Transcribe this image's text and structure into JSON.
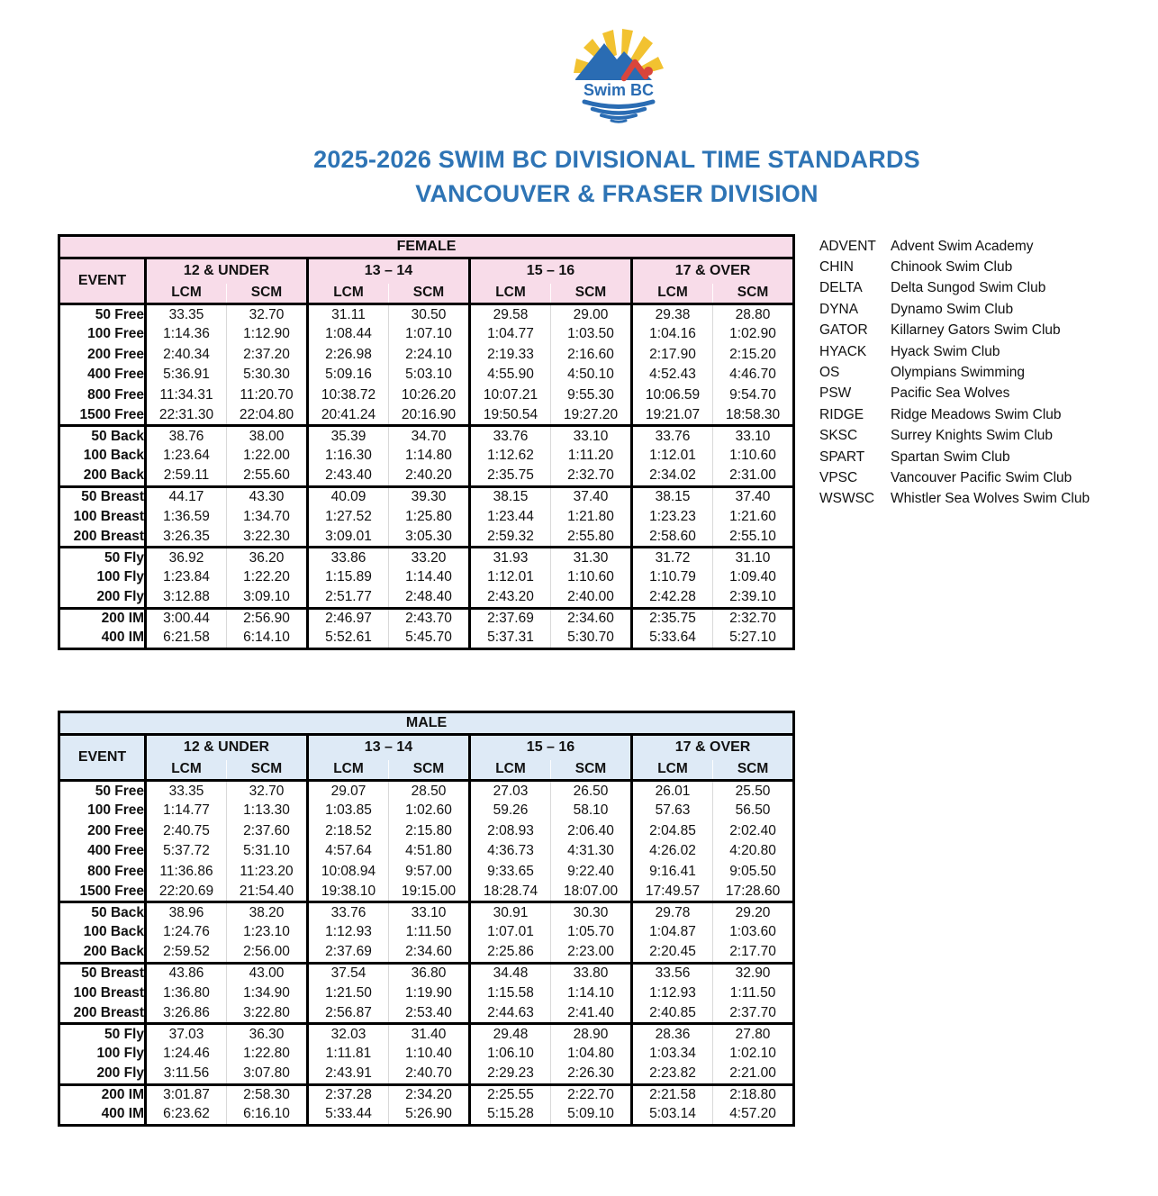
{
  "logo": {
    "text": "Swim BC"
  },
  "title": {
    "line1": "2025-2026 SWIM BC DIVISIONAL TIME STANDARDS",
    "line2": "VANCOUVER & FRASER DIVISION"
  },
  "colors": {
    "title_blue": "#2E74B5",
    "female_header": "#F8DCE9",
    "male_header": "#DEEAF6",
    "logo_yellow": "#F2C230",
    "logo_blue": "#2A6CB3",
    "logo_red": "#D9453C"
  },
  "tables": [
    {
      "gender": "FEMALE",
      "header_color": "#F8DCE9",
      "event_label": "EVENT",
      "age_groups": [
        "12 & UNDER",
        "13 – 14",
        "15 – 16",
        "17 & OVER"
      ],
      "course_labels": [
        "LCM",
        "SCM"
      ],
      "sections": [
        {
          "name": "freestyle",
          "rows": [
            {
              "event": "50 Free",
              "times": [
                "33.35",
                "32.70",
                "31.11",
                "30.50",
                "29.58",
                "29.00",
                "29.38",
                "28.80"
              ]
            },
            {
              "event": "100 Free",
              "times": [
                "1:14.36",
                "1:12.90",
                "1:08.44",
                "1:07.10",
                "1:04.77",
                "1:03.50",
                "1:04.16",
                "1:02.90"
              ]
            },
            {
              "event": "200 Free",
              "times": [
                "2:40.34",
                "2:37.20",
                "2:26.98",
                "2:24.10",
                "2:19.33",
                "2:16.60",
                "2:17.90",
                "2:15.20"
              ]
            },
            {
              "event": "400 Free",
              "times": [
                "5:36.91",
                "5:30.30",
                "5:09.16",
                "5:03.10",
                "4:55.90",
                "4:50.10",
                "4:52.43",
                "4:46.70"
              ]
            },
            {
              "event": "800 Free",
              "times": [
                "11:34.31",
                "11:20.70",
                "10:38.72",
                "10:26.20",
                "10:07.21",
                "9:55.30",
                "10:06.59",
                "9:54.70"
              ]
            },
            {
              "event": "1500 Free",
              "times": [
                "22:31.30",
                "22:04.80",
                "20:41.24",
                "20:16.90",
                "19:50.54",
                "19:27.20",
                "19:21.07",
                "18:58.30"
              ]
            }
          ]
        },
        {
          "name": "backstroke",
          "rows": [
            {
              "event": "50 Back",
              "times": [
                "38.76",
                "38.00",
                "35.39",
                "34.70",
                "33.76",
                "33.10",
                "33.76",
                "33.10"
              ]
            },
            {
              "event": "100 Back",
              "times": [
                "1:23.64",
                "1:22.00",
                "1:16.30",
                "1:14.80",
                "1:12.62",
                "1:11.20",
                "1:12.01",
                "1:10.60"
              ]
            },
            {
              "event": "200 Back",
              "times": [
                "2:59.11",
                "2:55.60",
                "2:43.40",
                "2:40.20",
                "2:35.75",
                "2:32.70",
                "2:34.02",
                "2:31.00"
              ]
            }
          ]
        },
        {
          "name": "breaststroke",
          "rows": [
            {
              "event": "50 Breast",
              "times": [
                "44.17",
                "43.30",
                "40.09",
                "39.30",
                "38.15",
                "37.40",
                "38.15",
                "37.40"
              ]
            },
            {
              "event": "100 Breast",
              "times": [
                "1:36.59",
                "1:34.70",
                "1:27.52",
                "1:25.80",
                "1:23.44",
                "1:21.80",
                "1:23.23",
                "1:21.60"
              ]
            },
            {
              "event": "200 Breast",
              "times": [
                "3:26.35",
                "3:22.30",
                "3:09.01",
                "3:05.30",
                "2:59.32",
                "2:55.80",
                "2:58.60",
                "2:55.10"
              ]
            }
          ]
        },
        {
          "name": "butterfly",
          "rows": [
            {
              "event": "50 Fly",
              "times": [
                "36.92",
                "36.20",
                "33.86",
                "33.20",
                "31.93",
                "31.30",
                "31.72",
                "31.10"
              ]
            },
            {
              "event": "100 Fly",
              "times": [
                "1:23.84",
                "1:22.20",
                "1:15.89",
                "1:14.40",
                "1:12.01",
                "1:10.60",
                "1:10.79",
                "1:09.40"
              ]
            },
            {
              "event": "200 Fly",
              "times": [
                "3:12.88",
                "3:09.10",
                "2:51.77",
                "2:48.40",
                "2:43.20",
                "2:40.00",
                "2:42.28",
                "2:39.10"
              ]
            }
          ]
        },
        {
          "name": "individual-medley",
          "rows": [
            {
              "event": "200 IM",
              "times": [
                "3:00.44",
                "2:56.90",
                "2:46.97",
                "2:43.70",
                "2:37.69",
                "2:34.60",
                "2:35.75",
                "2:32.70"
              ]
            },
            {
              "event": "400 IM",
              "times": [
                "6:21.58",
                "6:14.10",
                "5:52.61",
                "5:45.70",
                "5:37.31",
                "5:30.70",
                "5:33.64",
                "5:27.10"
              ]
            }
          ]
        }
      ]
    },
    {
      "gender": "MALE",
      "header_color": "#DEEAF6",
      "event_label": "EVENT",
      "age_groups": [
        "12 & UNDER",
        "13 – 14",
        "15 – 16",
        "17 & OVER"
      ],
      "course_labels": [
        "LCM",
        "SCM"
      ],
      "sections": [
        {
          "name": "freestyle",
          "rows": [
            {
              "event": "50 Free",
              "times": [
                "33.35",
                "32.70",
                "29.07",
                "28.50",
                "27.03",
                "26.50",
                "26.01",
                "25.50"
              ]
            },
            {
              "event": "100 Free",
              "times": [
                "1:14.77",
                "1:13.30",
                "1:03.85",
                "1:02.60",
                "59.26",
                "58.10",
                "57.63",
                "56.50"
              ]
            },
            {
              "event": "200 Free",
              "times": [
                "2:40.75",
                "2:37.60",
                "2:18.52",
                "2:15.80",
                "2:08.93",
                "2:06.40",
                "2:04.85",
                "2:02.40"
              ]
            },
            {
              "event": "400 Free",
              "times": [
                "5:37.72",
                "5:31.10",
                "4:57.64",
                "4:51.80",
                "4:36.73",
                "4:31.30",
                "4:26.02",
                "4:20.80"
              ]
            },
            {
              "event": "800 Free",
              "times": [
                "11:36.86",
                "11:23.20",
                "10:08.94",
                "9:57.00",
                "9:33.65",
                "9:22.40",
                "9:16.41",
                "9:05.50"
              ]
            },
            {
              "event": "1500 Free",
              "times": [
                "22:20.69",
                "21:54.40",
                "19:38.10",
                "19:15.00",
                "18:28.74",
                "18:07.00",
                "17:49.57",
                "17:28.60"
              ]
            }
          ]
        },
        {
          "name": "backstroke",
          "rows": [
            {
              "event": "50 Back",
              "times": [
                "38.96",
                "38.20",
                "33.76",
                "33.10",
                "30.91",
                "30.30",
                "29.78",
                "29.20"
              ]
            },
            {
              "event": "100 Back",
              "times": [
                "1:24.76",
                "1:23.10",
                "1:12.93",
                "1:11.50",
                "1:07.01",
                "1:05.70",
                "1:04.87",
                "1:03.60"
              ]
            },
            {
              "event": "200 Back",
              "times": [
                "2:59.52",
                "2:56.00",
                "2:37.69",
                "2:34.60",
                "2:25.86",
                "2:23.00",
                "2:20.45",
                "2:17.70"
              ]
            }
          ]
        },
        {
          "name": "breaststroke",
          "rows": [
            {
              "event": "50 Breast",
              "times": [
                "43.86",
                "43.00",
                "37.54",
                "36.80",
                "34.48",
                "33.80",
                "33.56",
                "32.90"
              ]
            },
            {
              "event": "100 Breast",
              "times": [
                "1:36.80",
                "1:34.90",
                "1:21.50",
                "1:19.90",
                "1:15.58",
                "1:14.10",
                "1:12.93",
                "1:11.50"
              ]
            },
            {
              "event": "200 Breast",
              "times": [
                "3:26.86",
                "3:22.80",
                "2:56.87",
                "2:53.40",
                "2:44.63",
                "2:41.40",
                "2:40.85",
                "2:37.70"
              ]
            }
          ]
        },
        {
          "name": "butterfly",
          "rows": [
            {
              "event": "50 Fly",
              "times": [
                "37.03",
                "36.30",
                "32.03",
                "31.40",
                "29.48",
                "28.90",
                "28.36",
                "27.80"
              ]
            },
            {
              "event": "100 Fly",
              "times": [
                "1:24.46",
                "1:22.80",
                "1:11.81",
                "1:10.40",
                "1:06.10",
                "1:04.80",
                "1:03.34",
                "1:02.10"
              ]
            },
            {
              "event": "200 Fly",
              "times": [
                "3:11.56",
                "3:07.80",
                "2:43.91",
                "2:40.70",
                "2:29.23",
                "2:26.30",
                "2:23.82",
                "2:21.00"
              ]
            }
          ]
        },
        {
          "name": "individual-medley",
          "rows": [
            {
              "event": "200 IM",
              "times": [
                "3:01.87",
                "2:58.30",
                "2:37.28",
                "2:34.20",
                "2:25.55",
                "2:22.70",
                "2:21.58",
                "2:18.80"
              ]
            },
            {
              "event": "400 IM",
              "times": [
                "6:23.62",
                "6:16.10",
                "5:33.44",
                "5:26.90",
                "5:15.28",
                "5:09.10",
                "5:03.14",
                "4:57.20"
              ]
            }
          ]
        }
      ]
    }
  ],
  "legend": [
    {
      "code": "ADVENT",
      "name": "Advent Swim Academy"
    },
    {
      "code": "CHIN",
      "name": "Chinook Swim Club"
    },
    {
      "code": "DELTA",
      "name": "Delta Sungod Swim Club"
    },
    {
      "code": "DYNA",
      "name": "Dynamo Swim Club"
    },
    {
      "code": "GATOR",
      "name": "Killarney Gators Swim Club"
    },
    {
      "code": "HYACK",
      "name": "Hyack Swim Club"
    },
    {
      "code": "OS",
      "name": "Olympians Swimming"
    },
    {
      "code": "PSW",
      "name": "Pacific Sea Wolves"
    },
    {
      "code": "RIDGE",
      "name": "Ridge Meadows Swim Club"
    },
    {
      "code": "SKSC",
      "name": "Surrey Knights Swim Club"
    },
    {
      "code": "SPART",
      "name": "Spartan Swim Club"
    },
    {
      "code": "VPSC",
      "name": "Vancouver Pacific Swim Club"
    },
    {
      "code": "WSWSC",
      "name": "Whistler Sea Wolves Swim Club"
    }
  ]
}
